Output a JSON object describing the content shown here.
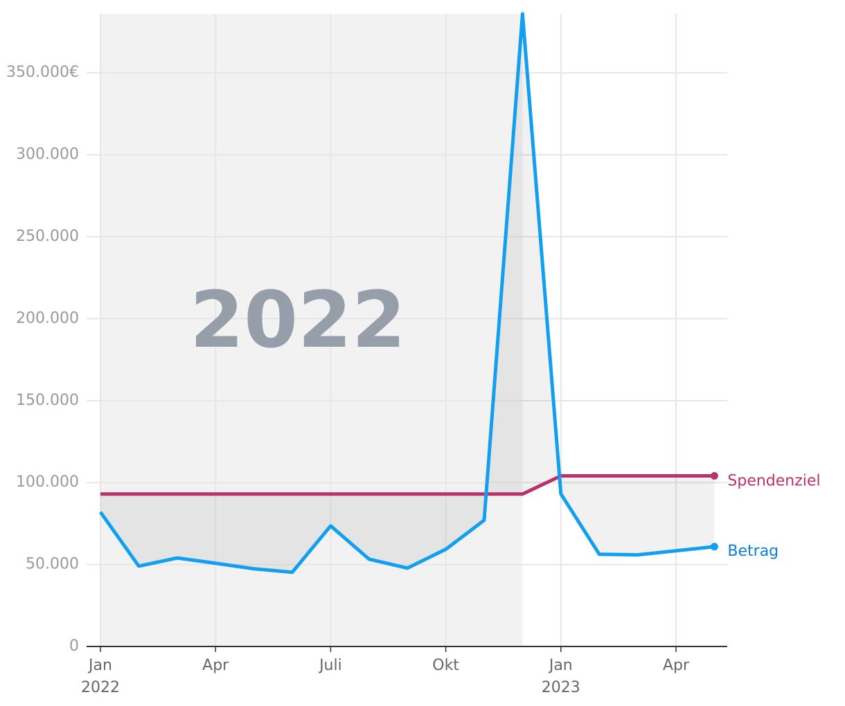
{
  "chart_data": {
    "type": "line",
    "categories": [
      "Jan\n2022",
      null,
      null,
      "Apr",
      null,
      null,
      "Juli",
      null,
      null,
      "Okt",
      null,
      null,
      "Jan\n2023",
      null,
      null,
      "Apr",
      null
    ],
    "series": [
      {
        "name": "Betrag",
        "color": "#129ff0",
        "label_color": "#0a7fd6",
        "values": [
          82000,
          49000,
          54000,
          50800,
          47400,
          45300,
          73600,
          53300,
          47800,
          59300,
          77000,
          386000,
          93100,
          56300,
          55900,
          58400,
          60900
        ]
      },
      {
        "name": "Spendenziel",
        "color": "#b8336a",
        "label_color": "#b8336a",
        "values": [
          93000,
          93000,
          93000,
          93000,
          93000,
          93000,
          93000,
          93000,
          93000,
          93000,
          93000,
          93000,
          104100,
          104100,
          104100,
          104100,
          104100
        ]
      }
    ],
    "annotation": "2022",
    "ylim": [
      0,
      386000
    ],
    "yticks": [
      0,
      {
        "value": 50000,
        "label": "50.000"
      },
      {
        "value": 100000,
        "label": "100.000"
      },
      {
        "value": 150000,
        "label": "150.000"
      },
      {
        "value": 200000,
        "label": "200.000"
      },
      {
        "value": 250000,
        "label": "250.000"
      },
      {
        "value": 300000,
        "label": "300.000"
      },
      {
        "value": 350000,
        "label": "350.000€"
      }
    ],
    "grid": true
  }
}
